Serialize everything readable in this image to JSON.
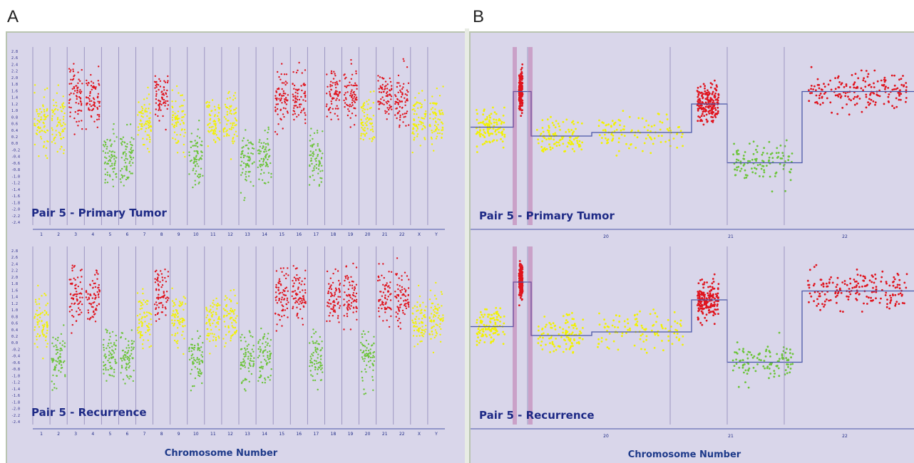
{
  "panels": [
    {
      "letter": "A",
      "xlabel": "Chromosome Number",
      "tracks": [
        {
          "label": "Pair 5 - Primary Tumor"
        },
        {
          "label": "Pair 5 - Recurrence"
        }
      ]
    },
    {
      "letter": "B",
      "xlabel": "Chromosome Number",
      "tracks": [
        {
          "label": "Pair 5 - Primary Tumor"
        },
        {
          "label": "Pair 5 - Recurrence"
        }
      ]
    }
  ],
  "colors": {
    "panel_bg": "#d9d6ea",
    "neutral": "#f2f200",
    "gain": "#e0141e",
    "loss": "#6cc43a",
    "segment_line": "#4a57a8",
    "separator": "#8e86b8",
    "label": "#1e2a86"
  },
  "chart_data": [
    {
      "type": "scatter",
      "title": "",
      "xlabel": "Chromosome Number",
      "ylabel": "",
      "categories": [
        "1",
        "2",
        "3",
        "4",
        "5",
        "6",
        "7",
        "8",
        "9",
        "10",
        "11",
        "12",
        "13",
        "14",
        "15",
        "16",
        "17",
        "18",
        "19",
        "20",
        "21",
        "22",
        "X",
        "Y"
      ],
      "y_tick_labels": [
        "2.8",
        "2.6",
        "2.4",
        "2.2",
        "2.0",
        "1.8",
        "1.6",
        "1.4",
        "1.2",
        "1.0",
        "0.8",
        "0.6",
        "0.4",
        "0.2",
        "0.0",
        "-0.2",
        "-0.4",
        "-0.6",
        "-0.8",
        "-1.0",
        "-1.2",
        "-1.4",
        "-1.6",
        "-1.8",
        "-2.0",
        "-2.2",
        "-2.4"
      ],
      "series": [
        {
          "name": "Pair 5 - Primary Tumor",
          "status": [
            "neutral",
            "neutral",
            "gain",
            "gain",
            "loss",
            "loss",
            "neutral",
            "gain",
            "neutral",
            "loss",
            "neutral",
            "neutral",
            "loss",
            "loss",
            "gain",
            "gain",
            "loss",
            "gain",
            "gain",
            "neutral",
            "gain",
            "gain",
            "neutral",
            "neutral"
          ]
        },
        {
          "name": "Pair 5 - Recurrence",
          "status": [
            "neutral",
            "loss",
            "gain",
            "gain",
            "loss",
            "loss",
            "neutral",
            "gain",
            "neutral",
            "loss",
            "neutral",
            "neutral",
            "loss",
            "loss",
            "gain",
            "gain",
            "loss",
            "gain",
            "gain",
            "loss",
            "gain",
            "gain",
            "neutral",
            "neutral"
          ]
        }
      ]
    },
    {
      "type": "scatter",
      "title": "",
      "xlabel": "Chromosome Number",
      "ylabel": "",
      "categories": [
        "20",
        "21",
        "22"
      ],
      "series": [
        {
          "name": "Pair 5 - Primary Tumor",
          "segments": [
            {
              "status": "neutral",
              "level": 0.55
            },
            {
              "status": "gain",
              "level": 0.75
            },
            {
              "status": "neutral",
              "level": 0.5
            },
            {
              "status": "neutral",
              "level": 0.52
            },
            {
              "status": "gain",
              "level": 0.68
            },
            {
              "status": "loss",
              "level": 0.35
            },
            {
              "status": "gain",
              "level": 0.75
            }
          ]
        },
        {
          "name": "Pair 5 - Recurrence",
          "segments": [
            {
              "status": "neutral",
              "level": 0.55
            },
            {
              "status": "gain",
              "level": 0.8
            },
            {
              "status": "neutral",
              "level": 0.5
            },
            {
              "status": "neutral",
              "level": 0.52
            },
            {
              "status": "gain",
              "level": 0.7
            },
            {
              "status": "loss",
              "level": 0.35
            },
            {
              "status": "gain",
              "level": 0.75
            }
          ]
        }
      ]
    }
  ]
}
